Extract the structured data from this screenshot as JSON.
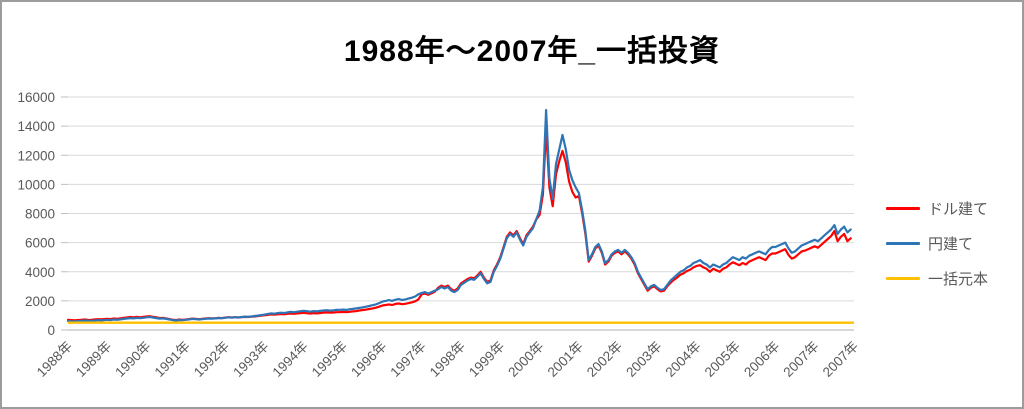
{
  "figure": {
    "title": "1988年〜2007年_一括投資"
  },
  "colors": {
    "series_dollar": "#FF0000",
    "series_yen": "#2E75B6",
    "series_principal": "#FFC000",
    "axis_text": "#595959",
    "gridline": "#D9D9D9",
    "axis_line": "#BFBFBF",
    "frame_border": "#9C9C9C",
    "title_text": "#000000"
  },
  "chart_data": {
    "type": "line",
    "title": "1988年〜2007年_一括投資",
    "x_unit": "monthly values, Jan 1988 - Dec 2007",
    "xlabel": "",
    "ylabel": "",
    "ylim": [
      0,
      16000
    ],
    "y_ticks": [
      0,
      2000,
      4000,
      6000,
      8000,
      10000,
      12000,
      14000,
      16000
    ],
    "grid": "horizontal",
    "legend_position": "right",
    "x_tick_labels": [
      "1988年",
      "1989年",
      "1990年",
      "1991年",
      "1992年",
      "1993年",
      "1994年",
      "1995年",
      "1996年",
      "1997年",
      "1998年",
      "1999年",
      "2000年",
      "2001年",
      "2002年",
      "2003年",
      "2004年",
      "2005年",
      "2006年",
      "2007年",
      "2007年"
    ],
    "series": [
      {
        "id": "dollar",
        "name": "ドル建て",
        "color": "#FF0000",
        "values": [
          700,
          680,
          660,
          680,
          700,
          720,
          700,
          690,
          720,
          740,
          730,
          750,
          770,
          750,
          790,
          770,
          800,
          830,
          860,
          890,
          870,
          900,
          870,
          900,
          930,
          950,
          900,
          870,
          820,
          840,
          800,
          750,
          710,
          680,
          720,
          700,
          720,
          750,
          780,
          760,
          740,
          770,
          790,
          810,
          800,
          810,
          830,
          820,
          850,
          880,
          860,
          880,
          860,
          880,
          900,
          890,
          910,
          930,
          960,
          990,
          1010,
          1040,
          1070,
          1050,
          1080,
          1100,
          1080,
          1110,
          1130,
          1110,
          1140,
          1160,
          1180,
          1150,
          1130,
          1160,
          1140,
          1170,
          1190,
          1210,
          1190,
          1200,
          1220,
          1230,
          1240,
          1220,
          1250,
          1280,
          1300,
          1340,
          1370,
          1400,
          1440,
          1480,
          1530,
          1600,
          1680,
          1720,
          1760,
          1720,
          1790,
          1820,
          1770,
          1800,
          1850,
          1900,
          1970,
          2100,
          2450,
          2500,
          2420,
          2520,
          2640,
          2900,
          3050,
          2950,
          3050,
          2800,
          2700,
          2850,
          3200,
          3350,
          3500,
          3600,
          3550,
          3750,
          4000,
          3600,
          3300,
          3400,
          4100,
          4500,
          5000,
          5700,
          6400,
          6700,
          6500,
          6800,
          6300,
          5900,
          6500,
          6800,
          7100,
          7600,
          7900,
          9300,
          13800,
          9800,
          8500,
          10700,
          11600,
          12300,
          11500,
          10200,
          9500,
          9100,
          9200,
          8000,
          6600,
          4700,
          5100,
          5600,
          5800,
          5300,
          4500,
          4700,
          5100,
          5300,
          5400,
          5200,
          5400,
          5200,
          4900,
          4500,
          3900,
          3500,
          3100,
          2700,
          2900,
          3000,
          2800,
          2650,
          2700,
          3000,
          3250,
          3450,
          3600,
          3800,
          3900,
          4050,
          4150,
          4300,
          4400,
          4450,
          4300,
          4200,
          4000,
          4200,
          4100,
          4000,
          4200,
          4300,
          4500,
          4650,
          4550,
          4450,
          4600,
          4500,
          4700,
          4800,
          4900,
          5000,
          4900,
          4800,
          5100,
          5250,
          5250,
          5350,
          5450,
          5550,
          5150,
          4900,
          5000,
          5200,
          5400,
          5450,
          5550,
          5650,
          5750,
          5650,
          5850,
          6050,
          6250,
          6450,
          6800,
          6100,
          6400,
          6600,
          6100,
          6300
        ]
      },
      {
        "id": "yen",
        "name": "円建て",
        "color": "#2E75B6",
        "values": [
          620,
          600,
          590,
          610,
          630,
          650,
          640,
          620,
          650,
          670,
          660,
          680,
          700,
          680,
          720,
          700,
          730,
          760,
          790,
          820,
          800,
          830,
          810,
          840,
          870,
          890,
          850,
          820,
          780,
          800,
          760,
          720,
          680,
          650,
          690,
          670,
          700,
          730,
          760,
          740,
          720,
          750,
          770,
          790,
          780,
          800,
          820,
          810,
          840,
          870,
          850,
          880,
          860,
          890,
          920,
          900,
          930,
          960,
          990,
          1020,
          1060,
          1100,
          1140,
          1120,
          1160,
          1190,
          1170,
          1210,
          1240,
          1220,
          1260,
          1290,
          1320,
          1290,
          1260,
          1300,
          1280,
          1310,
          1340,
          1360,
          1330,
          1350,
          1380,
          1390,
          1400,
          1380,
          1420,
          1450,
          1480,
          1520,
          1560,
          1600,
          1650,
          1700,
          1760,
          1850,
          1950,
          2000,
          2050,
          2000,
          2080,
          2120,
          2060,
          2100,
          2160,
          2220,
          2300,
          2450,
          2550,
          2600,
          2500,
          2600,
          2700,
          2800,
          2950,
          2850,
          2950,
          2700,
          2600,
          2750,
          3100,
          3250,
          3400,
          3500,
          3450,
          3650,
          3900,
          3500,
          3200,
          3300,
          4000,
          4400,
          4900,
          5600,
          6300,
          6600,
          6400,
          6700,
          6200,
          5800,
          6400,
          6700,
          7000,
          7600,
          8200,
          9800,
          15100,
          10400,
          9000,
          11400,
          12400,
          13400,
          12400,
          11000,
          10300,
          9800,
          9400,
          8200,
          6800,
          4800,
          5200,
          5700,
          5900,
          5400,
          4600,
          4800,
          5200,
          5400,
          5500,
          5300,
          5500,
          5300,
          5000,
          4600,
          4000,
          3600,
          3200,
          2800,
          3000,
          3100,
          2900,
          2750,
          2800,
          3100,
          3400,
          3600,
          3800,
          4000,
          4100,
          4300,
          4400,
          4600,
          4700,
          4800,
          4600,
          4500,
          4300,
          4500,
          4400,
          4300,
          4500,
          4600,
          4800,
          5000,
          4900,
          4800,
          5000,
          4900,
          5100,
          5200,
          5300,
          5400,
          5300,
          5200,
          5500,
          5700,
          5700,
          5800,
          5900,
          6000,
          5600,
          5300,
          5400,
          5600,
          5800,
          5900,
          6000,
          6100,
          6200,
          6100,
          6300,
          6500,
          6700,
          6900,
          7200,
          6600,
          6900,
          7100,
          6700,
          6900
        ]
      },
      {
        "id": "principal",
        "name": "一括元本",
        "color": "#FFC000",
        "constant": 500
      }
    ]
  }
}
